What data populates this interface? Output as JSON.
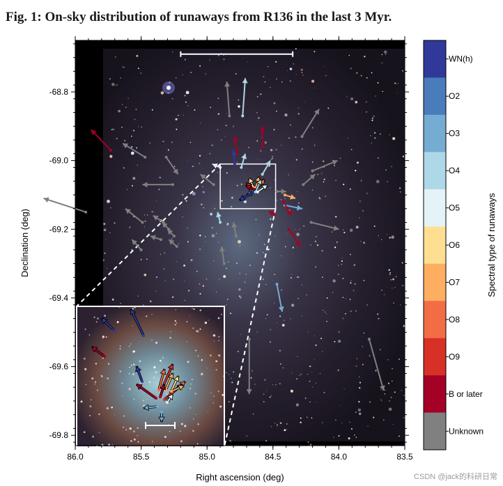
{
  "figure": {
    "title": "Fig. 1: On-sky distribution of runaways from R136 in the last 3 Myr.",
    "watermark": "CSDN @jack的科研日常"
  },
  "chart_data": {
    "type": "scatter",
    "xlabel": "Right ascension (deg)",
    "ylabel": "Declination (deg)",
    "xlim": [
      86.0,
      83.5
    ],
    "ylim": [
      -69.83,
      -68.65
    ],
    "x_ticks": [
      "86.0",
      "85.5",
      "85.0",
      "84.5",
      "84.0",
      "83.5"
    ],
    "x_tick_values": [
      86.0,
      85.5,
      85.0,
      84.5,
      84.0,
      83.5
    ],
    "y_ticks": [
      "-68.8",
      "-69.0",
      "-69.2",
      "-69.4",
      "-69.6",
      "-69.8"
    ],
    "y_tick_values": [
      -68.8,
      -69.0,
      -69.2,
      -69.4,
      -69.6,
      -69.8
    ],
    "background": "image",
    "grid": false,
    "colorbar": {
      "label": "Spectral type of runaways",
      "categories": [
        "WN(h)",
        "O2",
        "O3",
        "O4",
        "O5",
        "O6",
        "O7",
        "O8",
        "O9",
        "B or later",
        "Unknown"
      ],
      "colors": [
        "#30399a",
        "#4a7cbc",
        "#75acd2",
        "#acd8e8",
        "#e3f3f8",
        "#fedf92",
        "#fdae61",
        "#f26d46",
        "#d73027",
        "#a50026",
        "#808080"
      ]
    },
    "center_box": {
      "ra": [
        84.9,
        84.48
      ],
      "dec": [
        -69.14,
        -69.01
      ]
    },
    "runaways": [
      {
        "ra": 85.73,
        "dec": -68.97,
        "dra": 0.15,
        "ddec": 0.06,
        "type": "B or later"
      },
      {
        "ra": 85.47,
        "dec": -68.99,
        "dra": 0.17,
        "ddec": 0.04,
        "type": "Unknown"
      },
      {
        "ra": 85.31,
        "dec": -68.99,
        "dra": -0.09,
        "ddec": -0.05,
        "type": "Unknown"
      },
      {
        "ra": 84.83,
        "dec": -68.87,
        "dra": 0.02,
        "ddec": 0.1,
        "type": "Unknown"
      },
      {
        "ra": 84.73,
        "dec": -68.87,
        "dra": -0.02,
        "ddec": 0.11,
        "type": "O4"
      },
      {
        "ra": 84.58,
        "dec": -68.96,
        "dra": 0.0,
        "ddec": 0.06,
        "type": "B or later"
      },
      {
        "ra": 84.28,
        "dec": -68.93,
        "dra": -0.13,
        "ddec": 0.08,
        "type": "Unknown"
      },
      {
        "ra": 84.77,
        "dec": -68.98,
        "dra": 0.02,
        "ddec": 0.05,
        "type": "B or later"
      },
      {
        "ra": 84.9,
        "dec": -69.02,
        "dra": 0.06,
        "ddec": 0.01,
        "type": "O5"
      },
      {
        "ra": 84.79,
        "dec": -69.01,
        "dra": 0.01,
        "ddec": 0.04,
        "type": "WN(h)"
      },
      {
        "ra": 84.74,
        "dec": -69.02,
        "dra": -0.03,
        "ddec": 0.04,
        "type": "O4"
      },
      {
        "ra": 84.58,
        "dec": -69.04,
        "dra": -0.06,
        "ddec": 0.04,
        "type": "O4"
      },
      {
        "ra": 85.26,
        "dec": -69.07,
        "dra": 0.23,
        "ddec": 0.0,
        "type": "Unknown"
      },
      {
        "ra": 84.95,
        "dec": -69.07,
        "dra": 0.1,
        "ddec": 0.03,
        "type": "Unknown"
      },
      {
        "ra": 84.27,
        "dec": -69.07,
        "dra": -0.09,
        "ddec": 0.03,
        "type": "Unknown"
      },
      {
        "ra": 84.2,
        "dec": -69.03,
        "dra": -0.19,
        "ddec": 0.03,
        "type": "Unknown"
      },
      {
        "ra": 84.47,
        "dec": -69.09,
        "dra": -0.07,
        "ddec": 0.0,
        "type": "Unknown"
      },
      {
        "ra": 84.41,
        "dec": -69.1,
        "dra": -0.08,
        "ddec": -0.01,
        "type": "O7"
      },
      {
        "ra": 84.41,
        "dec": -69.13,
        "dra": -0.13,
        "ddec": -0.01,
        "type": "O3"
      },
      {
        "ra": 84.42,
        "dec": -69.12,
        "dra": -0.06,
        "ddec": -0.04,
        "type": "B or later"
      },
      {
        "ra": 85.92,
        "dec": -69.15,
        "dra": 0.32,
        "ddec": 0.04,
        "type": "Unknown"
      },
      {
        "ra": 85.49,
        "dec": -69.18,
        "dra": 0.13,
        "ddec": 0.04,
        "type": "Unknown"
      },
      {
        "ra": 85.33,
        "dec": -69.18,
        "dra": 0.08,
        "ddec": 0.02,
        "type": "Unknown"
      },
      {
        "ra": 85.29,
        "dec": -69.2,
        "dra": 0.05,
        "ddec": 0.02,
        "type": "Unknown"
      },
      {
        "ra": 85.35,
        "dec": -69.23,
        "dra": 0.08,
        "ddec": 0.01,
        "type": "Unknown"
      },
      {
        "ra": 85.5,
        "dec": -69.26,
        "dra": 0.07,
        "ddec": 0.03,
        "type": "Unknown"
      },
      {
        "ra": 85.23,
        "dec": -69.25,
        "dra": 0.06,
        "ddec": 0.02,
        "type": "Unknown"
      },
      {
        "ra": 85.25,
        "dec": -69.22,
        "dra": 0.05,
        "ddec": 0.02,
        "type": "Unknown"
      },
      {
        "ra": 84.9,
        "dec": -69.18,
        "dra": 0.02,
        "ddec": 0.03,
        "type": "O4"
      },
      {
        "ra": 84.78,
        "dec": -69.22,
        "dra": 0.02,
        "ddec": 0.04,
        "type": "Unknown"
      },
      {
        "ra": 84.87,
        "dec": -69.3,
        "dra": 0.02,
        "ddec": 0.05,
        "type": "Unknown"
      },
      {
        "ra": 84.52,
        "dec": -69.15,
        "dra": -0.04,
        "ddec": -0.01,
        "type": "B or later"
      },
      {
        "ra": 84.38,
        "dec": -69.2,
        "dra": -0.09,
        "ddec": -0.05,
        "type": "B or later"
      },
      {
        "ra": 84.21,
        "dec": -69.18,
        "dra": -0.21,
        "ddec": -0.02,
        "type": "Unknown"
      },
      {
        "ra": 84.47,
        "dec": -69.36,
        "dra": -0.04,
        "ddec": -0.08,
        "type": "O3"
      },
      {
        "ra": 84.68,
        "dec": -69.52,
        "dra": 0.0,
        "ddec": -0.16,
        "type": "Unknown"
      },
      {
        "ra": 83.77,
        "dec": -69.52,
        "dra": -0.11,
        "ddec": -0.15,
        "type": "Unknown"
      }
    ],
    "scale_bar_main": {
      "ra": [
        85.2,
        84.35
      ],
      "dec": -68.69
    },
    "inset_runaways_count": 16
  }
}
